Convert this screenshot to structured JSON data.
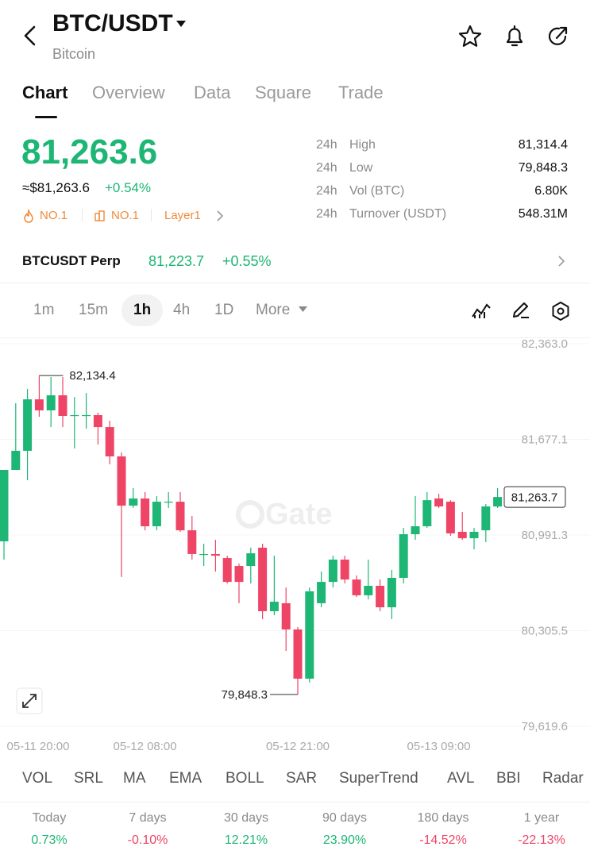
{
  "header": {
    "symbol": "BTC/USDT",
    "name": "Bitcoin"
  },
  "tabs": [
    "Chart",
    "Overview",
    "Data",
    "Square",
    "Trade"
  ],
  "price": {
    "last": "81,263.6",
    "usd": "≈$81,263.6",
    "change": "+0.54%",
    "tags": [
      "NO.1",
      "NO.1",
      "Layer1"
    ]
  },
  "stats": [
    {
      "period": "24h",
      "label": "High",
      "value": "81,314.4"
    },
    {
      "period": "24h",
      "label": "Low",
      "value": "79,848.3"
    },
    {
      "period": "24h",
      "label": "Vol (BTC)",
      "value": "6.80K"
    },
    {
      "period": "24h",
      "label": "Turnover (USDT)",
      "value": "548.31M"
    }
  ],
  "perp": {
    "name": "BTCUSDT Perp",
    "price": "81,223.7",
    "change": "+0.55%"
  },
  "intervals": [
    "1m",
    "15m",
    "1h",
    "4h",
    "1D",
    "More"
  ],
  "chart_data": {
    "type": "candlestick",
    "watermark": "Gate",
    "up_color": "#1db674",
    "down_color": "#ee4466",
    "categories": [
      "05-11 20:00",
      null,
      null,
      null,
      null,
      null,
      null,
      null,
      null,
      null,
      null,
      null,
      "05-12 08:00",
      null,
      null,
      null,
      null,
      null,
      null,
      null,
      null,
      null,
      null,
      null,
      null,
      "05-12 21:00",
      null,
      null,
      null,
      null,
      null,
      null,
      null,
      null,
      null,
      null,
      null,
      "05-13 09:00",
      null,
      null,
      null,
      null,
      null
    ],
    "open": [
      80946,
      81458,
      81595,
      81964,
      81885,
      81993,
      81845,
      81851,
      81851,
      81765,
      81555,
      81202,
      81253,
      81054,
      81230,
      81230,
      81025,
      80855,
      80855,
      80826,
      80769,
      80769,
      80900,
      80445,
      80502,
      80314,
      79961,
      80502,
      80655,
      80815,
      80672,
      80559,
      80627,
      80473,
      80684,
      80997,
      81054,
      81253,
      81230,
      81014,
      80968,
      81025,
      81196
    ],
    "high": [
      81458,
      81936,
      82039,
      82134.4,
      82124,
      82124,
      81981,
      82010,
      81868,
      81811,
      81583,
      81327,
      81299,
      81270,
      81299,
      81299,
      81128,
      80929,
      80957,
      80843,
      80786,
      80900,
      80929,
      80843,
      80615,
      80331,
      80615,
      80729,
      80843,
      80843,
      80701,
      80815,
      80672,
      80741,
      81042,
      81270,
      81299,
      81287,
      81241,
      81156,
      81042,
      81213,
      81327
    ],
    "low": [
      80815,
      81458,
      81384,
      81839,
      81765,
      81765,
      81612,
      81754,
      81640,
      81498,
      80690,
      81185,
      81025,
      81025,
      81185,
      81014,
      80815,
      80769,
      80729,
      80644,
      80502,
      80644,
      80388,
      80416,
      80160,
      79848.3,
      79933,
      80473,
      80615,
      80644,
      80547,
      80530,
      80445,
      80388,
      80644,
      80957,
      81042,
      81185,
      80986,
      80957,
      80889,
      80940,
      81185
    ],
    "close": [
      81458,
      81595,
      81964,
      81885,
      81993,
      81845,
      81851,
      81851,
      81765,
      81555,
      81202,
      81253,
      81054,
      81230,
      81230,
      81025,
      80855,
      80855,
      80843,
      80655,
      80655,
      80860,
      80445,
      80513,
      80314,
      79961,
      80587,
      80655,
      80815,
      80672,
      80559,
      80627,
      80473,
      80684,
      80997,
      81054,
      81241,
      81196,
      81003,
      80968,
      81014,
      81196,
      81263.7
    ],
    "ylim": [
      79619.6,
      82363.0
    ],
    "yticks": [
      {
        "value": 82363.0,
        "label": "82,363.0"
      },
      {
        "value": 81677.1,
        "label": "81,677.1"
      },
      {
        "value": 80991.3,
        "label": "80,991.3"
      },
      {
        "value": 80305.5,
        "label": "80,305.5"
      },
      {
        "value": 79619.6,
        "label": "79,619.6"
      }
    ],
    "annotations": [
      {
        "value": 82134.4,
        "label": "82,134.4"
      },
      {
        "value": 79848.3,
        "label": "79,848.3"
      },
      {
        "value": 81263.7,
        "label": "81,263.7"
      }
    ]
  },
  "indicators": [
    "VOL",
    "SRL",
    "MA",
    "EMA",
    "BOLL",
    "SAR",
    "SuperTrend",
    "AVL",
    "BBI",
    "Radar"
  ],
  "performance": [
    {
      "period": "Today",
      "change": "0.73%"
    },
    {
      "period": "7 days",
      "change": "-0.10%"
    },
    {
      "period": "30 days",
      "change": "12.21%"
    },
    {
      "period": "90 days",
      "change": "23.90%"
    },
    {
      "period": "180 days",
      "change": "-14.52%"
    },
    {
      "period": "1 year",
      "change": "-22.13%"
    }
  ]
}
